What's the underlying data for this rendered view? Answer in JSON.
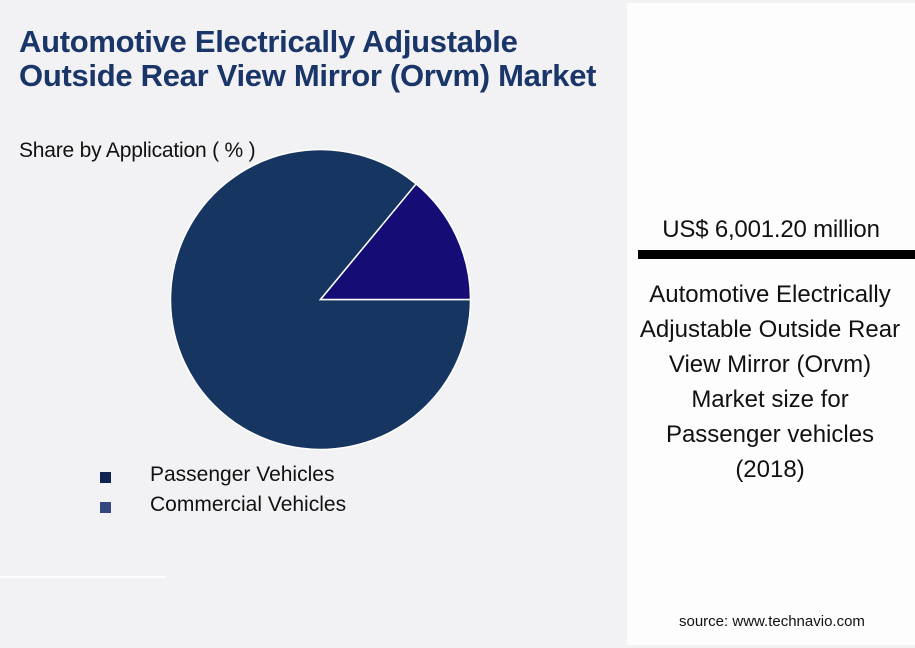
{
  "header": {
    "title": "Automotive Electrically Adjustable Outside Rear View Mirror (Orvm) Market",
    "subtitle": "Share by Application ( % )"
  },
  "legend": [
    {
      "label": "Passenger Vehicles",
      "color": "#0f2250"
    },
    {
      "label": "Commercial Vehicles",
      "color": "#34477f"
    }
  ],
  "side_panel": {
    "value": "US$ 6,001.20 million",
    "description": "Automotive Electrically Adjustable Outside Rear View Mirror (Orvm) Market size for Passenger vehicles (2018)",
    "source": "source: www.technavio.com"
  },
  "colors": {
    "passenger_slice": "#163661",
    "commercial_slice": "#150d75",
    "title": "#1a3668",
    "background": "#f2f2f4"
  },
  "chart_data": {
    "type": "pie",
    "title": "Automotive Electrically Adjustable Outside Rear View Mirror (Orvm) Market",
    "subtitle": "Share by Application ( % )",
    "categories": [
      "Passenger Vehicles",
      "Commercial Vehicles"
    ],
    "values": [
      86,
      14
    ],
    "colors": [
      "#163661",
      "#150d75"
    ],
    "legend_position": "bottom-left",
    "annotation": "US$ 6,001.20 million — Market size for Passenger vehicles (2018)"
  }
}
